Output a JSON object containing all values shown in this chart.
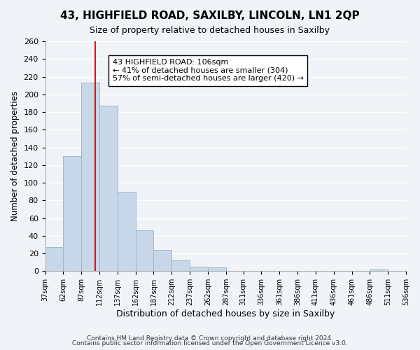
{
  "title": "43, HIGHFIELD ROAD, SAXILBY, LINCOLN, LN1 2QP",
  "subtitle": "Size of property relative to detached houses in Saxilby",
  "xlabel": "Distribution of detached houses by size in Saxilby",
  "ylabel": "Number of detached properties",
  "bar_color": "#c8d8e8",
  "bar_edge_color": "#a0b8cc",
  "vline_x": 106,
  "vline_color": "red",
  "annotation_title": "43 HIGHFIELD ROAD: 106sqm",
  "annotation_line1": "← 41% of detached houses are smaller (304)",
  "annotation_line2": "57% of semi-detached houses are larger (420) →",
  "annotation_box_color": "white",
  "annotation_box_edge": "black",
  "ylim": [
    0,
    260
  ],
  "yticks": [
    0,
    20,
    40,
    60,
    80,
    100,
    120,
    140,
    160,
    180,
    200,
    220,
    240,
    260
  ],
  "bin_edges": [
    37,
    62,
    87,
    112,
    137,
    162,
    187,
    212,
    237,
    262,
    287,
    311,
    336,
    361,
    386,
    411,
    436,
    461,
    486,
    511,
    536
  ],
  "bin_counts": [
    27,
    130,
    213,
    187,
    90,
    46,
    24,
    12,
    5,
    4,
    0,
    0,
    0,
    0,
    0,
    0,
    0,
    0,
    2,
    0,
    0
  ],
  "footnote1": "Contains HM Land Registry data © Crown copyright and database right 2024.",
  "footnote2": "Contains public sector information licensed under the Open Government Licence v3.0.",
  "background_color": "#f0f4f8",
  "grid_color": "white"
}
